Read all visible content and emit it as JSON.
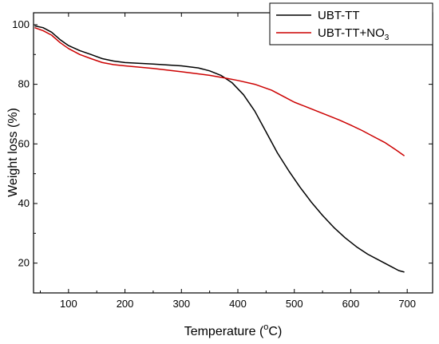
{
  "chart_data": {
    "type": "line",
    "title": "",
    "xlabel": {
      "main": "Temperature (",
      "superscript": "o",
      "tail": "C)"
    },
    "ylabel": "Weight loss (%)",
    "xlim": [
      38,
      745
    ],
    "ylim": [
      10,
      104
    ],
    "x_ticks": [
      100,
      200,
      300,
      400,
      500,
      600,
      700
    ],
    "y_ticks": [
      20,
      40,
      60,
      80,
      100
    ],
    "grid": false,
    "legend_position": "top-right",
    "series": [
      {
        "name": "UBT-TT",
        "legend": {
          "main": "UBT-TT",
          "subscript": ""
        },
        "color": "#000000",
        "points": [
          [
            40,
            99.6
          ],
          [
            55,
            99.0
          ],
          [
            70,
            97.5
          ],
          [
            85,
            95.0
          ],
          [
            100,
            93.0
          ],
          [
            120,
            91.3
          ],
          [
            140,
            90.0
          ],
          [
            160,
            88.6
          ],
          [
            180,
            87.8
          ],
          [
            200,
            87.3
          ],
          [
            250,
            86.8
          ],
          [
            300,
            86.2
          ],
          [
            330,
            85.5
          ],
          [
            350,
            84.5
          ],
          [
            370,
            83.0
          ],
          [
            390,
            80.5
          ],
          [
            410,
            76.5
          ],
          [
            430,
            71.0
          ],
          [
            450,
            64.0
          ],
          [
            470,
            57.0
          ],
          [
            490,
            51.0
          ],
          [
            510,
            45.5
          ],
          [
            530,
            40.5
          ],
          [
            550,
            36.0
          ],
          [
            570,
            32.0
          ],
          [
            590,
            28.5
          ],
          [
            610,
            25.5
          ],
          [
            630,
            23.0
          ],
          [
            650,
            21.0
          ],
          [
            670,
            19.0
          ],
          [
            685,
            17.5
          ],
          [
            695,
            17.0
          ]
        ]
      },
      {
        "name": "UBT-TT+NO3",
        "legend": {
          "main": "UBT-TT+NO",
          "subscript": "3"
        },
        "color": "#cc0000",
        "points": [
          [
            40,
            99.0
          ],
          [
            55,
            98.0
          ],
          [
            70,
            96.5
          ],
          [
            85,
            94.0
          ],
          [
            100,
            92.0
          ],
          [
            120,
            90.0
          ],
          [
            140,
            88.6
          ],
          [
            160,
            87.3
          ],
          [
            180,
            86.6
          ],
          [
            200,
            86.2
          ],
          [
            250,
            85.3
          ],
          [
            300,
            84.2
          ],
          [
            350,
            83.0
          ],
          [
            380,
            82.0
          ],
          [
            400,
            81.3
          ],
          [
            430,
            80.0
          ],
          [
            460,
            78.0
          ],
          [
            480,
            76.0
          ],
          [
            500,
            74.0
          ],
          [
            520,
            72.5
          ],
          [
            540,
            71.0
          ],
          [
            560,
            69.5
          ],
          [
            580,
            68.0
          ],
          [
            600,
            66.3
          ],
          [
            620,
            64.5
          ],
          [
            640,
            62.5
          ],
          [
            660,
            60.5
          ],
          [
            680,
            58.0
          ],
          [
            695,
            56.0
          ]
        ]
      }
    ]
  }
}
